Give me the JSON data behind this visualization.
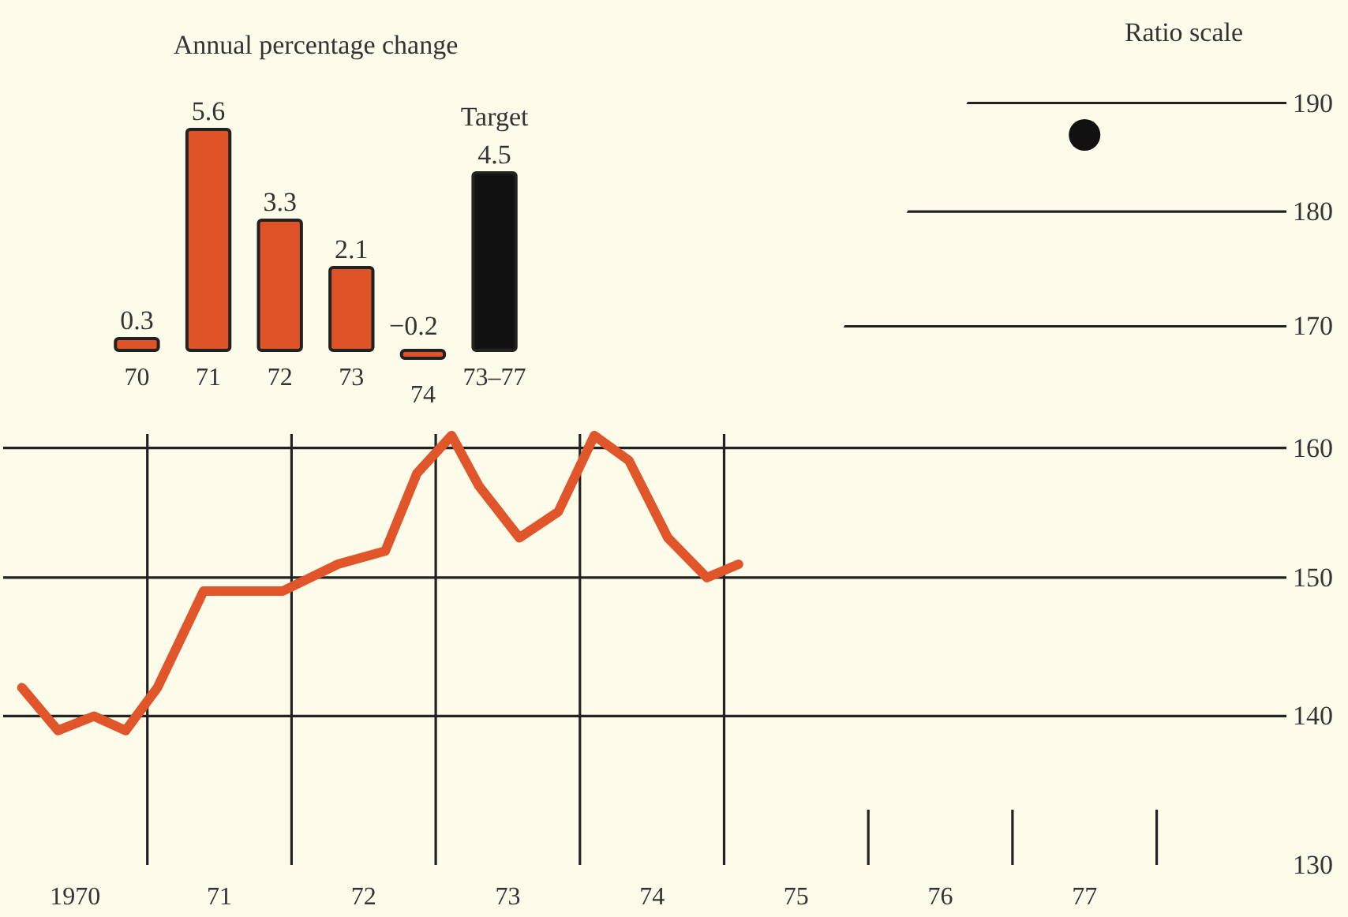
{
  "chart_data": [
    {
      "type": "bar",
      "title": "Annual percentage change",
      "categories": [
        "70",
        "71",
        "72",
        "73",
        "74",
        "73–77"
      ],
      "values": [
        0.3,
        5.6,
        3.3,
        2.1,
        -0.2,
        4.5
      ],
      "colors": [
        "#de5327",
        "#de5327",
        "#de5327",
        "#de5327",
        "#de5327",
        "#111111"
      ],
      "data_labels": true,
      "annotations": [
        {
          "text": "Target",
          "x": "73–77",
          "y": 4.5
        }
      ]
    },
    {
      "type": "line",
      "ylabel": "Ratio scale",
      "log": true,
      "grid": "y",
      "xlim": [
        1969.5,
        1978.4
      ],
      "ylim": [
        130,
        200
      ],
      "xticks": [
        {
          "value": 1970,
          "label": "1970"
        },
        {
          "value": 1971,
          "label": "71"
        },
        {
          "value": 1972,
          "label": "72"
        },
        {
          "value": 1973,
          "label": "73"
        },
        {
          "value": 1974,
          "label": "74"
        },
        {
          "value": 1975,
          "label": "75"
        },
        {
          "value": 1976,
          "label": "76"
        },
        {
          "value": 1977,
          "label": "77"
        }
      ],
      "ref_lines": [
        {
          "axis": "x",
          "value": 1970.5
        },
        {
          "axis": "x",
          "value": 1971.5
        },
        {
          "axis": "x",
          "value": 1972.5
        },
        {
          "axis": "x",
          "value": 1973.5
        },
        {
          "axis": "x",
          "value": 1974.5
        }
      ],
      "yticks": [
        130,
        140,
        150,
        160,
        170,
        180,
        190
      ],
      "series": [
        {
          "type": "line",
          "color": "#e0552a",
          "marker": "none",
          "x": [
            1969.63,
            1969.88,
            1970.13,
            1970.35,
            1970.57,
            1970.89,
            1971.11,
            1971.44,
            1971.82,
            1972.15,
            1972.37,
            1972.61,
            1972.8,
            1973.08,
            1973.35,
            1973.6,
            1973.84,
            1974.11,
            1974.38,
            1974.6
          ],
          "values": [
            142,
            139,
            140,
            139,
            142,
            149,
            149,
            149,
            151,
            152,
            158,
            161,
            157,
            153,
            155,
            161,
            159,
            153,
            150,
            151
          ]
        },
        {
          "type": "scatter",
          "color": "#111111",
          "marker": "circle",
          "x": [
            1977
          ],
          "values": [
            187
          ]
        }
      ]
    }
  ]
}
